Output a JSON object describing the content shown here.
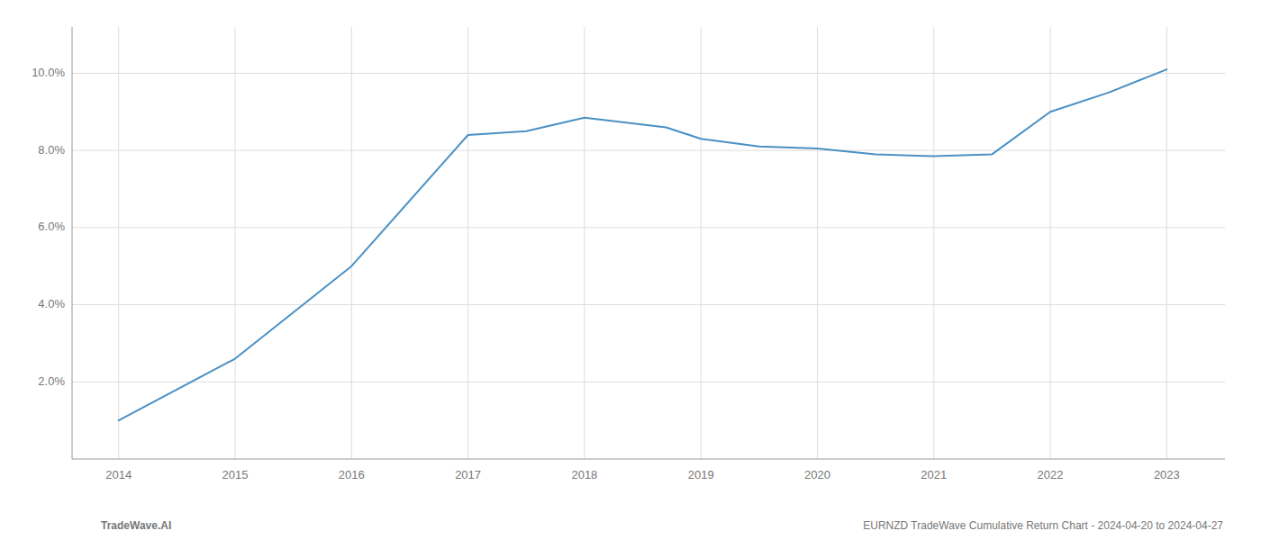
{
  "chart_data": {
    "type": "line",
    "x": [
      2014,
      2015,
      2016,
      2017,
      2017.5,
      2018,
      2018.7,
      2019,
      2019.5,
      2020,
      2020.5,
      2021,
      2021.5,
      2022,
      2022.5,
      2023
    ],
    "values": [
      0.01,
      0.026,
      0.05,
      0.084,
      0.085,
      0.0885,
      0.086,
      0.083,
      0.081,
      0.0805,
      0.079,
      0.0785,
      0.079,
      0.09,
      0.095,
      0.101
    ],
    "color": "#4a90c4",
    "xlim": [
      2013.6,
      2023.5
    ],
    "ylim": [
      0.0,
      0.112
    ],
    "xticks": [
      2014,
      2015,
      2016,
      2017,
      2018,
      2019,
      2020,
      2021,
      2022,
      2023
    ],
    "yticks": [
      {
        "value": 0.02,
        "label": "2.0%"
      },
      {
        "value": 0.04,
        "label": "4.0%"
      },
      {
        "value": 0.06,
        "label": "6.0%"
      },
      {
        "value": 0.08,
        "label": "8.0%"
      },
      {
        "value": 0.1,
        "label": "10.0%"
      }
    ],
    "grid": true,
    "annotations": [
      "TradeWave.AI",
      "EURNZD TradeWave Cumulative Return Chart - 2024-04-20 to 2024-04-27"
    ]
  }
}
